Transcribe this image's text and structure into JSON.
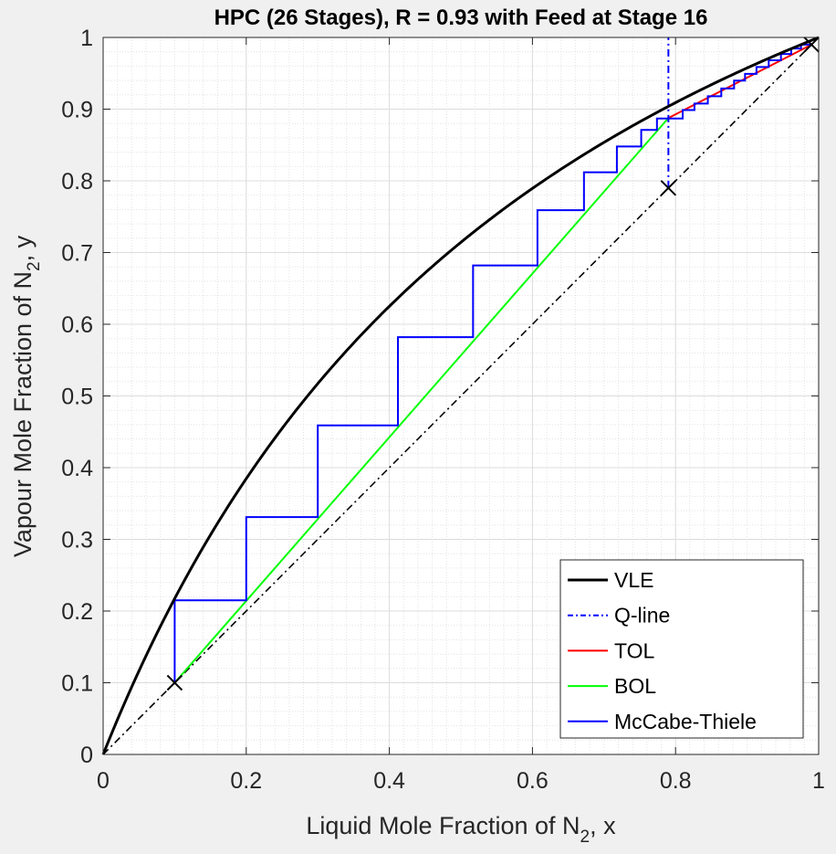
{
  "chart_data": {
    "type": "line",
    "title": "HPC (26 Stages), R = 0.93 with Feed at Stage 16",
    "xlabel": {
      "prefix": "Liquid Mole Fraction of N",
      "sub": "2",
      "suffix": ", x"
    },
    "ylabel": {
      "prefix": "Vapour Mole Fraction of N",
      "sub": "2",
      "suffix": ", y"
    },
    "xlim": [
      0,
      1
    ],
    "ylim": [
      0,
      1
    ],
    "xticks": [
      "0",
      "0.2",
      "0.4",
      "0.6",
      "0.8",
      "1"
    ],
    "yticks": [
      "0",
      "0.1",
      "0.2",
      "0.3",
      "0.4",
      "0.5",
      "0.6",
      "0.7",
      "0.8",
      "0.9",
      "1"
    ],
    "grid": true,
    "minor_grid": true,
    "legend_position": "bottom-right",
    "series": [
      {
        "name": "VLE",
        "color": "#000000",
        "style": "solid",
        "relative_volatility": 2.5,
        "x_range": [
          0,
          1
        ]
      },
      {
        "name": "Q-line",
        "color": "#0000ff",
        "style": "dash-dot",
        "x": [
          0.79,
          0.79
        ],
        "y": [
          0.79,
          1.0
        ]
      },
      {
        "name": "TOL",
        "color": "#ff0000",
        "style": "solid",
        "x": [
          0.79,
          0.99
        ],
        "y": [
          0.8876,
          0.99
        ]
      },
      {
        "name": "BOL",
        "color": "#00ff00",
        "style": "solid",
        "x": [
          0.1,
          0.79
        ],
        "y": [
          0.1,
          0.8876
        ]
      },
      {
        "name": "McCabe-Thiele",
        "color": "#0000ff",
        "style": "solid",
        "x": [
          0.99,
          0.9754,
          0.9754,
          0.9617,
          0.9617,
          0.9473,
          0.9473,
          0.9302,
          0.9302,
          0.9131,
          0.9131,
          0.8971,
          0.8971,
          0.8818,
          0.8818,
          0.8639,
          0.8639,
          0.8451,
          0.8451,
          0.8264,
          0.8264,
          0.81,
          0.81,
          0.79,
          0.79,
          0.774,
          0.774,
          0.752,
          0.752,
          0.718,
          0.718,
          0.672,
          0.672,
          0.607,
          0.607,
          0.517,
          0.517,
          0.412,
          0.412,
          0.3,
          0.3,
          0.2,
          0.2,
          0.1,
          0.1
        ],
        "y": [
          0.99,
          0.99,
          0.9845,
          0.9845,
          0.9769,
          0.9769,
          0.9681,
          0.9681,
          0.9587,
          0.9587,
          0.9492,
          0.9492,
          0.9398,
          0.9398,
          0.9288,
          0.9288,
          0.918,
          0.918,
          0.9078,
          0.9078,
          0.8988,
          0.8988,
          0.887,
          0.887,
          0.887,
          0.887,
          0.871,
          0.871,
          0.848,
          0.848,
          0.812,
          0.812,
          0.759,
          0.759,
          0.682,
          0.682,
          0.582,
          0.582,
          0.459,
          0.459,
          0.331,
          0.331,
          0.215,
          0.215,
          0.1
        ]
      },
      {
        "name": "y = x",
        "color": "#000000",
        "style": "dash-dot",
        "x": [
          0,
          1
        ],
        "y": [
          0,
          1
        ]
      }
    ],
    "markers": [
      {
        "x": 0.1,
        "y": 0.1
      },
      {
        "x": 0.79,
        "y": 0.79
      },
      {
        "x": 0.99,
        "y": 0.99
      }
    ],
    "legend": [
      "VLE",
      "Q-line",
      "TOL",
      "BOL",
      "McCabe-Thiele"
    ]
  }
}
